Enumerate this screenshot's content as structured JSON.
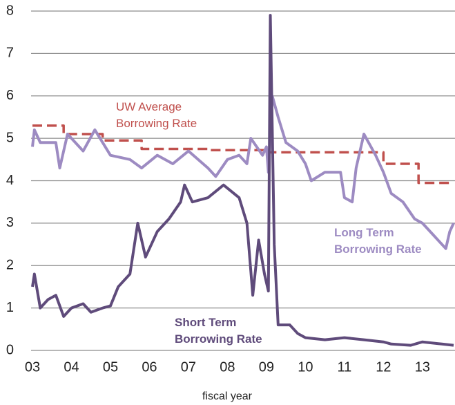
{
  "chart_data": {
    "type": "line",
    "x_label": "fiscal year",
    "xlim": [
      3,
      13.8
    ],
    "xticks": [
      {
        "value": 3,
        "label": "03"
      },
      {
        "value": 4,
        "label": "04"
      },
      {
        "value": 5,
        "label": "05"
      },
      {
        "value": 6,
        "label": "06"
      },
      {
        "value": 7,
        "label": "07"
      },
      {
        "value": 8,
        "label": "08"
      },
      {
        "value": 9,
        "label": "09"
      },
      10,
      11,
      12,
      13
    ],
    "ylim": [
      0,
      8
    ],
    "yticks": [
      0,
      1,
      2,
      3,
      4,
      5,
      6,
      7,
      8
    ],
    "grid": true,
    "series": [
      {
        "name": "UW Average Borrowing Rate",
        "color": "#c0504d",
        "dashed": true,
        "x": [
          3,
          3.8,
          3.8,
          4.8,
          4.8,
          5.8,
          5.8,
          7.5,
          7.5,
          9.0,
          9.0,
          12.0,
          12.0,
          12.9,
          12.9,
          13.8
        ],
        "values": [
          5.3,
          5.3,
          5.1,
          5.1,
          4.95,
          4.95,
          4.75,
          4.75,
          4.72,
          4.72,
          4.67,
          4.67,
          4.4,
          4.4,
          3.95,
          3.95
        ]
      },
      {
        "name": "Long Term Borrowing Rate",
        "color": "#9d8bc2",
        "x": [
          3,
          3.05,
          3.2,
          3.6,
          3.7,
          3.9,
          4.3,
          4.6,
          5.0,
          5.5,
          5.8,
          6.2,
          6.6,
          7.0,
          7.5,
          7.7,
          8.0,
          8.3,
          8.5,
          8.6,
          8.9,
          9.0,
          9.05,
          9.15,
          9.3,
          9.5,
          9.8,
          10.0,
          10.15,
          10.5,
          10.9,
          11.0,
          11.2,
          11.3,
          11.5,
          11.8,
          12.0,
          12.2,
          12.5,
          12.8,
          13.0,
          13.3,
          13.6,
          13.7,
          13.8
        ],
        "values": [
          4.8,
          5.2,
          4.9,
          4.9,
          4.3,
          5.1,
          4.7,
          5.2,
          4.6,
          4.5,
          4.3,
          4.6,
          4.4,
          4.7,
          4.3,
          4.1,
          4.5,
          4.6,
          4.4,
          5.0,
          4.6,
          4.8,
          4.2,
          6.0,
          5.5,
          4.9,
          4.7,
          4.4,
          4.0,
          4.2,
          4.2,
          3.6,
          3.5,
          4.3,
          5.1,
          4.6,
          4.2,
          3.7,
          3.5,
          3.1,
          3.0,
          2.7,
          2.4,
          2.8,
          3.0
        ]
      },
      {
        "name": "Short Term Borrowing Rate",
        "color": "#5f4b7b",
        "x": [
          3,
          3.05,
          3.2,
          3.4,
          3.6,
          3.8,
          4.0,
          4.3,
          4.5,
          4.8,
          5.0,
          5.2,
          5.5,
          5.7,
          5.9,
          6.2,
          6.5,
          6.8,
          6.9,
          7.1,
          7.5,
          7.9,
          8.3,
          8.5,
          8.65,
          8.8,
          8.95,
          9.05,
          9.1,
          9.2,
          9.3,
          9.6,
          9.8,
          10.0,
          10.5,
          11.0,
          11.5,
          12.0,
          12.2,
          12.7,
          13.0,
          13.5,
          13.8
        ],
        "values": [
          1.5,
          1.8,
          1.0,
          1.2,
          1.3,
          0.8,
          1.0,
          1.1,
          0.9,
          1.0,
          1.05,
          1.5,
          1.8,
          3.0,
          2.2,
          2.8,
          3.1,
          3.5,
          3.9,
          3.5,
          3.6,
          3.9,
          3.6,
          3.0,
          1.3,
          2.6,
          1.8,
          1.4,
          7.9,
          2.5,
          0.6,
          0.6,
          0.4,
          0.3,
          0.25,
          0.3,
          0.25,
          0.2,
          0.15,
          0.12,
          0.2,
          0.15,
          0.12
        ]
      }
    ]
  }
}
